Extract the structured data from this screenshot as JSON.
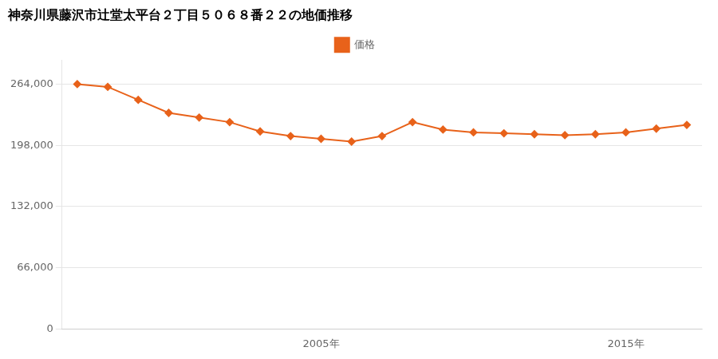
{
  "chart_data": {
    "type": "line",
    "title": "神奈川県藤沢市辻堂太平台２丁目５０６８番２２の地価推移",
    "x": [
      1997,
      1998,
      1999,
      2000,
      2001,
      2002,
      2003,
      2004,
      2005,
      2006,
      2007,
      2008,
      2009,
      2010,
      2011,
      2012,
      2013,
      2014,
      2015,
      2016,
      2017
    ],
    "series": [
      {
        "name": "価格",
        "color": "#e8621a",
        "marker": "diamond",
        "values": [
          264000,
          261000,
          247000,
          233000,
          228000,
          223000,
          213000,
          208000,
          205000,
          202000,
          208000,
          223000,
          215000,
          212000,
          211000,
          210000,
          209000,
          210000,
          212000,
          216000,
          220000
        ]
      }
    ],
    "xlim": [
      1996.5,
      2017.5
    ],
    "xticks": [
      {
        "value": 2005,
        "label": "2005年"
      },
      {
        "value": 2015,
        "label": "2015年"
      }
    ],
    "ylim": [
      0,
      290000
    ],
    "yticks": [
      0,
      {
        "value": 66000,
        "label": "66,000"
      },
      {
        "value": 132000,
        "label": "132,000"
      },
      {
        "value": 198000,
        "label": "198,000"
      },
      {
        "value": 264000,
        "label": "264,000"
      }
    ],
    "grid": "y",
    "legend": "top"
  }
}
